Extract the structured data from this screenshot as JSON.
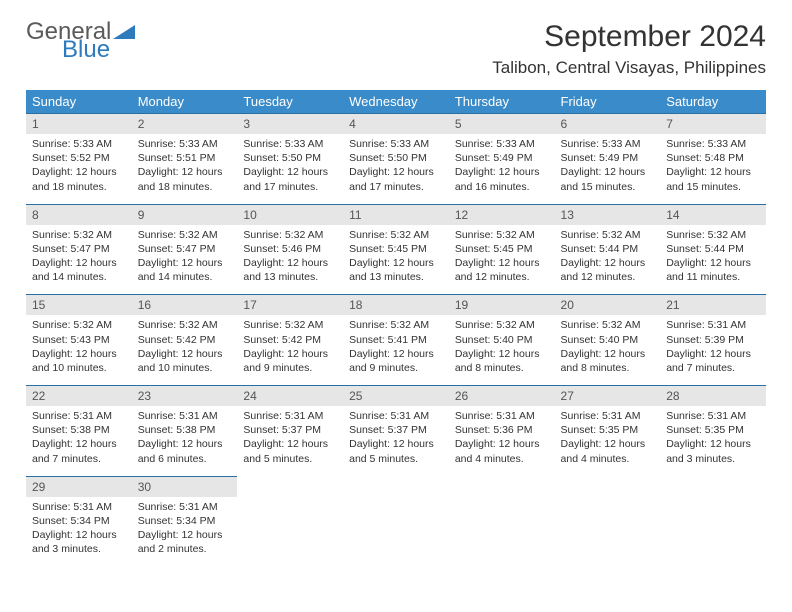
{
  "logo": {
    "text1": "General",
    "text2": "Blue"
  },
  "title": "September 2024",
  "location": "Talibon, Central Visayas, Philippines",
  "colors": {
    "header_bg": "#3a8bc9",
    "header_text": "#ffffff",
    "daynum_bg": "#e6e6e6",
    "daynum_text": "#555555",
    "body_text": "#333333",
    "border": "#2a6fa3",
    "logo_gray": "#5a5a5a",
    "logo_blue": "#2d7bbd"
  },
  "fonts": {
    "title_size": 30,
    "location_size": 17,
    "header_size": 13,
    "daynum_size": 12,
    "detail_size": 10.5
  },
  "weekdays": [
    "Sunday",
    "Monday",
    "Tuesday",
    "Wednesday",
    "Thursday",
    "Friday",
    "Saturday"
  ],
  "weeks": [
    [
      {
        "n": "1",
        "sr": "Sunrise: 5:33 AM",
        "ss": "Sunset: 5:52 PM",
        "d1": "Daylight: 12 hours",
        "d2": "and 18 minutes."
      },
      {
        "n": "2",
        "sr": "Sunrise: 5:33 AM",
        "ss": "Sunset: 5:51 PM",
        "d1": "Daylight: 12 hours",
        "d2": "and 18 minutes."
      },
      {
        "n": "3",
        "sr": "Sunrise: 5:33 AM",
        "ss": "Sunset: 5:50 PM",
        "d1": "Daylight: 12 hours",
        "d2": "and 17 minutes."
      },
      {
        "n": "4",
        "sr": "Sunrise: 5:33 AM",
        "ss": "Sunset: 5:50 PM",
        "d1": "Daylight: 12 hours",
        "d2": "and 17 minutes."
      },
      {
        "n": "5",
        "sr": "Sunrise: 5:33 AM",
        "ss": "Sunset: 5:49 PM",
        "d1": "Daylight: 12 hours",
        "d2": "and 16 minutes."
      },
      {
        "n": "6",
        "sr": "Sunrise: 5:33 AM",
        "ss": "Sunset: 5:49 PM",
        "d1": "Daylight: 12 hours",
        "d2": "and 15 minutes."
      },
      {
        "n": "7",
        "sr": "Sunrise: 5:33 AM",
        "ss": "Sunset: 5:48 PM",
        "d1": "Daylight: 12 hours",
        "d2": "and 15 minutes."
      }
    ],
    [
      {
        "n": "8",
        "sr": "Sunrise: 5:32 AM",
        "ss": "Sunset: 5:47 PM",
        "d1": "Daylight: 12 hours",
        "d2": "and 14 minutes."
      },
      {
        "n": "9",
        "sr": "Sunrise: 5:32 AM",
        "ss": "Sunset: 5:47 PM",
        "d1": "Daylight: 12 hours",
        "d2": "and 14 minutes."
      },
      {
        "n": "10",
        "sr": "Sunrise: 5:32 AM",
        "ss": "Sunset: 5:46 PM",
        "d1": "Daylight: 12 hours",
        "d2": "and 13 minutes."
      },
      {
        "n": "11",
        "sr": "Sunrise: 5:32 AM",
        "ss": "Sunset: 5:45 PM",
        "d1": "Daylight: 12 hours",
        "d2": "and 13 minutes."
      },
      {
        "n": "12",
        "sr": "Sunrise: 5:32 AM",
        "ss": "Sunset: 5:45 PM",
        "d1": "Daylight: 12 hours",
        "d2": "and 12 minutes."
      },
      {
        "n": "13",
        "sr": "Sunrise: 5:32 AM",
        "ss": "Sunset: 5:44 PM",
        "d1": "Daylight: 12 hours",
        "d2": "and 12 minutes."
      },
      {
        "n": "14",
        "sr": "Sunrise: 5:32 AM",
        "ss": "Sunset: 5:44 PM",
        "d1": "Daylight: 12 hours",
        "d2": "and 11 minutes."
      }
    ],
    [
      {
        "n": "15",
        "sr": "Sunrise: 5:32 AM",
        "ss": "Sunset: 5:43 PM",
        "d1": "Daylight: 12 hours",
        "d2": "and 10 minutes."
      },
      {
        "n": "16",
        "sr": "Sunrise: 5:32 AM",
        "ss": "Sunset: 5:42 PM",
        "d1": "Daylight: 12 hours",
        "d2": "and 10 minutes."
      },
      {
        "n": "17",
        "sr": "Sunrise: 5:32 AM",
        "ss": "Sunset: 5:42 PM",
        "d1": "Daylight: 12 hours",
        "d2": "and 9 minutes."
      },
      {
        "n": "18",
        "sr": "Sunrise: 5:32 AM",
        "ss": "Sunset: 5:41 PM",
        "d1": "Daylight: 12 hours",
        "d2": "and 9 minutes."
      },
      {
        "n": "19",
        "sr": "Sunrise: 5:32 AM",
        "ss": "Sunset: 5:40 PM",
        "d1": "Daylight: 12 hours",
        "d2": "and 8 minutes."
      },
      {
        "n": "20",
        "sr": "Sunrise: 5:32 AM",
        "ss": "Sunset: 5:40 PM",
        "d1": "Daylight: 12 hours",
        "d2": "and 8 minutes."
      },
      {
        "n": "21",
        "sr": "Sunrise: 5:31 AM",
        "ss": "Sunset: 5:39 PM",
        "d1": "Daylight: 12 hours",
        "d2": "and 7 minutes."
      }
    ],
    [
      {
        "n": "22",
        "sr": "Sunrise: 5:31 AM",
        "ss": "Sunset: 5:38 PM",
        "d1": "Daylight: 12 hours",
        "d2": "and 7 minutes."
      },
      {
        "n": "23",
        "sr": "Sunrise: 5:31 AM",
        "ss": "Sunset: 5:38 PM",
        "d1": "Daylight: 12 hours",
        "d2": "and 6 minutes."
      },
      {
        "n": "24",
        "sr": "Sunrise: 5:31 AM",
        "ss": "Sunset: 5:37 PM",
        "d1": "Daylight: 12 hours",
        "d2": "and 5 minutes."
      },
      {
        "n": "25",
        "sr": "Sunrise: 5:31 AM",
        "ss": "Sunset: 5:37 PM",
        "d1": "Daylight: 12 hours",
        "d2": "and 5 minutes."
      },
      {
        "n": "26",
        "sr": "Sunrise: 5:31 AM",
        "ss": "Sunset: 5:36 PM",
        "d1": "Daylight: 12 hours",
        "d2": "and 4 minutes."
      },
      {
        "n": "27",
        "sr": "Sunrise: 5:31 AM",
        "ss": "Sunset: 5:35 PM",
        "d1": "Daylight: 12 hours",
        "d2": "and 4 minutes."
      },
      {
        "n": "28",
        "sr": "Sunrise: 5:31 AM",
        "ss": "Sunset: 5:35 PM",
        "d1": "Daylight: 12 hours",
        "d2": "and 3 minutes."
      }
    ],
    [
      {
        "n": "29",
        "sr": "Sunrise: 5:31 AM",
        "ss": "Sunset: 5:34 PM",
        "d1": "Daylight: 12 hours",
        "d2": "and 3 minutes."
      },
      {
        "n": "30",
        "sr": "Sunrise: 5:31 AM",
        "ss": "Sunset: 5:34 PM",
        "d1": "Daylight: 12 hours",
        "d2": "and 2 minutes."
      },
      null,
      null,
      null,
      null,
      null
    ]
  ]
}
